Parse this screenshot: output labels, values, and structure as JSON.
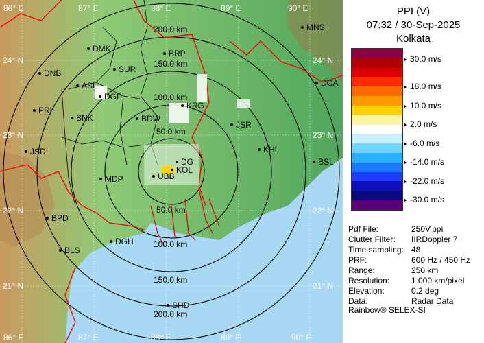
{
  "panel": {
    "title_line1": "PPI (V)",
    "title_line2": "07:32 / 30-Sep-2025",
    "title_line3": "Kolkata",
    "legend_labels": [
      "30.0 m/s",
      "18.0 m/s",
      "10.0 m/s",
      "2.0 m/s",
      "-6.0 m/s",
      "-14.0 m/s",
      "-22.0 m/s",
      "-30.0 m/s"
    ],
    "legend_colors": [
      "#8b0040",
      "#b00000",
      "#dd0000",
      "#ff2a00",
      "#ff6a00",
      "#ff9a00",
      "#ffd000",
      "#fff4a0",
      "#ffffff",
      "#c8f0ff",
      "#70d8ff",
      "#28b0ff",
      "#1e78ff",
      "#1c3cff",
      "#1010c0",
      "#0a0a80",
      "#5a007a"
    ],
    "meta": [
      {
        "k": "Pdf File:",
        "v": "250V.ppi"
      },
      {
        "k": "Clutter Filter:",
        "v": "IIRDoppler 7"
      },
      {
        "k": "Time sampling:",
        "v": "48"
      },
      {
        "k": "PRF:",
        "v": "600 Hz / 450 Hz"
      },
      {
        "k": "Range:",
        "v": "250 km"
      },
      {
        "k": "Resolution:",
        "v": "1.000 km/pixel"
      },
      {
        "k": "Elevation:",
        "v": "0.2 deg"
      },
      {
        "k": "Data:",
        "v": "Radar Data"
      }
    ],
    "footer": "Rainbow® SELEX-SI"
  },
  "map": {
    "lon_labels": [
      "86° E",
      "87° E",
      "88° E",
      "89° E",
      "90° E"
    ],
    "lat_labels": [
      "24° N",
      "23° N",
      "22° N",
      "21° N"
    ],
    "range_labels": [
      "200.0 km",
      "150.0 km",
      "100.0 km",
      "50.0 km",
      "50.0 km",
      "100.0 km",
      "150.0 km",
      "200.0 km"
    ],
    "stations": [
      "MNS",
      "DMK",
      "BRP",
      "DNB",
      "SUR",
      "DCA",
      "ASL",
      "DGP",
      "KRG",
      "PRL",
      "BNK",
      "BDW",
      "JSR",
      "JSD",
      "KHL",
      "BSL",
      "DG",
      "KOL",
      "UBB",
      "MDP",
      "BPD",
      "DGH",
      "BLS",
      "SHD"
    ],
    "colors": {
      "sea": "#a9d8f5",
      "land_low": "#6fb96b",
      "land_mid": "#9bcf7a",
      "land_high": "#c9a36b",
      "border": "#ff0000"
    }
  }
}
